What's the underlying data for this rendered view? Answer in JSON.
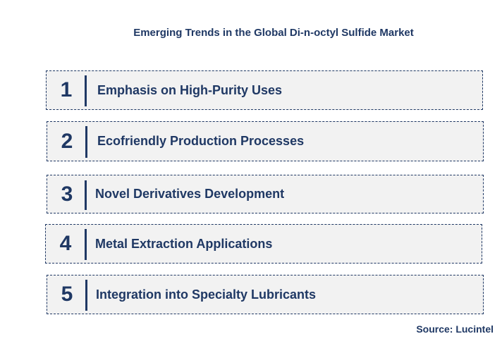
{
  "title": "Emerging Trends in the Global Di-n-octyl Sulfide Market",
  "trends": [
    {
      "number": "1",
      "label": "Emphasis on High-Purity Uses"
    },
    {
      "number": "2",
      "label": "Ecofriendly Production Processes"
    },
    {
      "number": "3",
      "label": "Novel Derivatives Development"
    },
    {
      "number": "4",
      "label": "Metal Extraction Applications"
    },
    {
      "number": "5",
      "label": "Integration into Specialty Lubricants"
    }
  ],
  "source": "Source: Lucintel",
  "colors": {
    "text": "#1f3864",
    "box_background": "#f2f2f2",
    "box_border": "#1f3864"
  }
}
